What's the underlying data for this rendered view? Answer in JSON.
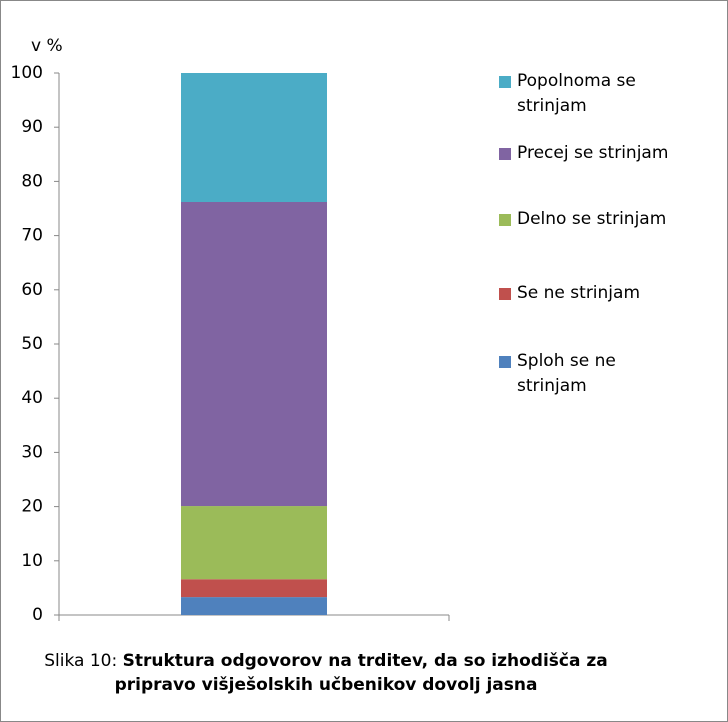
{
  "chart_data": {
    "type": "stacked_bar",
    "ylabel": "v %",
    "categories": [
      null
    ],
    "series": [
      {
        "name": "Sploh se ne strinjam",
        "color": "#4f81bd",
        "values": [
          3.3
        ]
      },
      {
        "name": "Se ne strinjam",
        "color": "#c0504d",
        "values": [
          3.3
        ]
      },
      {
        "name": "Delno se strinjam",
        "color": "#9bbb59",
        "values": [
          13.5
        ]
      },
      {
        "name": "Precej se strinjam",
        "color": "#8064a2",
        "values": [
          56.1
        ]
      },
      {
        "name": "Popolnoma se strinjam",
        "color": "#4bacc6",
        "values": [
          23.8
        ]
      }
    ],
    "ylim": [
      0,
      100
    ],
    "yticks": [
      0,
      10,
      20,
      30,
      40,
      50,
      60,
      70,
      80,
      90,
      100
    ],
    "grid": false,
    "legend": "right",
    "caption_prefix": "Slika 10:",
    "caption": "Struktura odgovorov na trditev, da so izhodišča za pripravo višješolskih učbenikov dovolj jasna"
  }
}
